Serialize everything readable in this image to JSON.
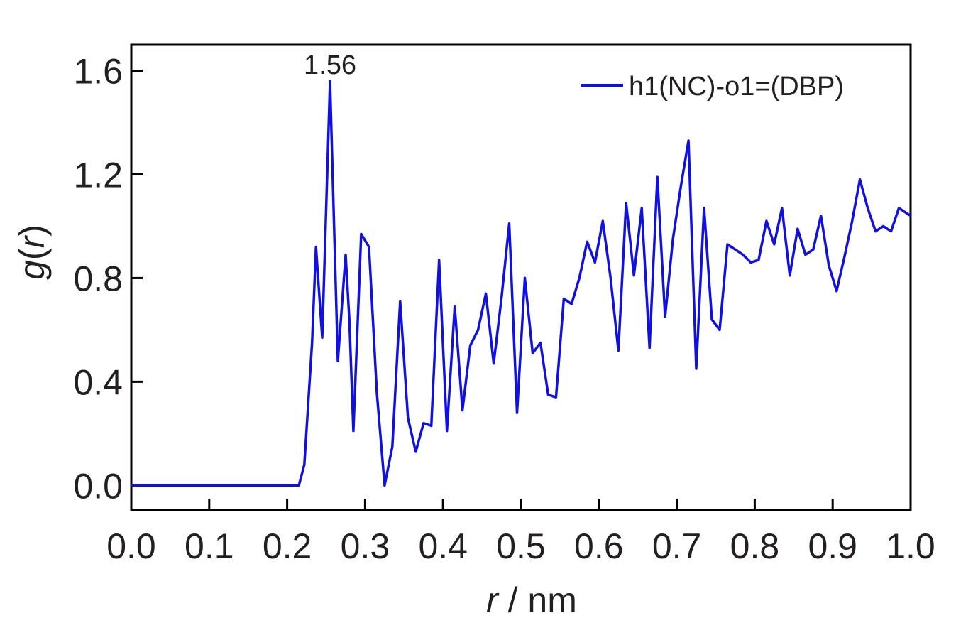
{
  "chart_data": {
    "type": "line",
    "xlabel": "r / nm",
    "ylabel": "g(r)",
    "xlim": [
      0.0,
      1.0
    ],
    "ylim": [
      -0.095,
      1.7
    ],
    "x_ticks": [
      0.0,
      0.1,
      0.2,
      0.3,
      0.4,
      0.5,
      0.6,
      0.7,
      0.8,
      0.9,
      1.0
    ],
    "x_tick_labels": [
      "0.0",
      "0.1",
      "0.2",
      "0.3",
      "0.4",
      "0.5",
      "0.6",
      "0.7",
      "0.8",
      "0.9",
      "1.0"
    ],
    "y_ticks": [
      0.0,
      0.4,
      0.8,
      1.2,
      1.6
    ],
    "y_tick_labels": [
      "0.0",
      "0.4",
      "0.8",
      "1.2",
      "1.6"
    ],
    "grid": false,
    "legend_position": "top-right",
    "annotation": {
      "text": "1.56",
      "x": 0.255,
      "y": 1.56
    },
    "series": [
      {
        "name": "h1(NC)-o1=(DBP)",
        "color": "#1010e0",
        "x": [
          0.0,
          0.215,
          0.222,
          0.232,
          0.237,
          0.245,
          0.255,
          0.265,
          0.275,
          0.28,
          0.285,
          0.295,
          0.305,
          0.315,
          0.325,
          0.335,
          0.345,
          0.355,
          0.365,
          0.375,
          0.385,
          0.395,
          0.405,
          0.415,
          0.425,
          0.435,
          0.445,
          0.455,
          0.465,
          0.475,
          0.485,
          0.495,
          0.505,
          0.515,
          0.525,
          0.535,
          0.545,
          0.555,
          0.565,
          0.575,
          0.585,
          0.595,
          0.605,
          0.615,
          0.625,
          0.635,
          0.645,
          0.655,
          0.665,
          0.675,
          0.685,
          0.695,
          0.705,
          0.715,
          0.725,
          0.735,
          0.745,
          0.755,
          0.765,
          0.775,
          0.785,
          0.795,
          0.805,
          0.815,
          0.825,
          0.835,
          0.845,
          0.855,
          0.865,
          0.875,
          0.885,
          0.895,
          0.905,
          0.915,
          0.925,
          0.935,
          0.945,
          0.955,
          0.965,
          0.975,
          0.985,
          0.995,
          1.0
        ],
        "y": [
          0.0,
          0.0,
          0.08,
          0.55,
          0.92,
          0.57,
          1.56,
          0.48,
          0.89,
          0.63,
          0.21,
          0.97,
          0.92,
          0.36,
          0.0,
          0.15,
          0.71,
          0.26,
          0.13,
          0.24,
          0.23,
          0.87,
          0.21,
          0.69,
          0.29,
          0.54,
          0.6,
          0.74,
          0.47,
          0.72,
          1.01,
          0.28,
          0.8,
          0.51,
          0.55,
          0.35,
          0.34,
          0.72,
          0.7,
          0.8,
          0.94,
          0.86,
          1.02,
          0.8,
          0.52,
          1.09,
          0.81,
          1.07,
          0.53,
          1.19,
          0.65,
          0.95,
          1.15,
          1.33,
          0.45,
          1.07,
          0.64,
          0.6,
          0.93,
          0.91,
          0.89,
          0.86,
          0.87,
          1.02,
          0.93,
          1.07,
          0.81,
          0.99,
          0.89,
          0.91,
          1.04,
          0.85,
          0.75,
          0.88,
          1.02,
          1.18,
          1.07,
          0.98,
          1.0,
          0.98,
          1.07,
          1.05,
          1.04
        ]
      }
    ]
  }
}
